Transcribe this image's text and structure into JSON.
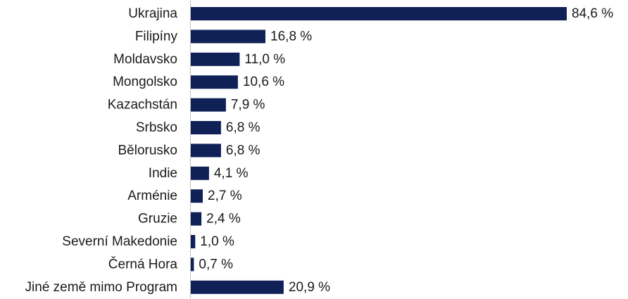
{
  "chart_data": {
    "type": "bar",
    "orientation": "horizontal",
    "categories": [
      "Ukrajina",
      "Filipíny",
      "Moldavsko",
      "Mongolsko",
      "Kazachstán",
      "Srbsko",
      "Bělorusko",
      "Indie",
      "Arménie",
      "Gruzie",
      "Severní Makedonie",
      "Černá Hora",
      "Jiné země mimo Program"
    ],
    "values": [
      84.6,
      16.8,
      11.0,
      10.6,
      7.9,
      6.8,
      6.8,
      4.1,
      2.7,
      2.4,
      1.0,
      0.7,
      20.9
    ],
    "value_labels": [
      "84,6 %",
      "16,8 %",
      "11,0 %",
      "10,6 %",
      "7,9 %",
      "6,8 %",
      "6,8 %",
      "4,1 %",
      "2,7 %",
      "2,4 %",
      "1,0 %",
      "0,7 %",
      "20,9 %"
    ],
    "xlim": [
      0,
      84.6
    ],
    "grid": false,
    "legend": "none",
    "bar_color": "#0f2157",
    "axis_color": "#bfbfbf"
  }
}
